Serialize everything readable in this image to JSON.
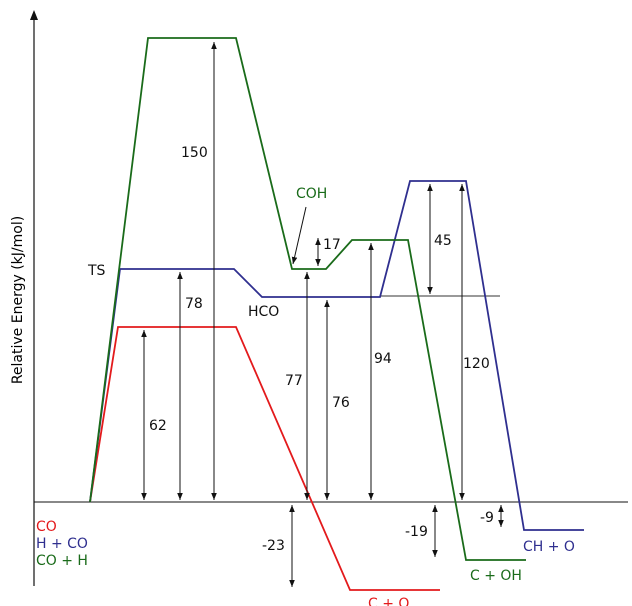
{
  "axis": {
    "ylabel": "Relative Energy (kJ/mol)"
  },
  "colors": {
    "red": "#e31a1c",
    "blue": "#2f2f8f",
    "green": "#1a6b1a",
    "black": "#111111",
    "ref": "#333333"
  },
  "paths": {
    "red": {
      "label": "CO",
      "end_label": "C + O"
    },
    "blue": {
      "label": "H + CO",
      "ts_label": "TS",
      "int_label": "HCO",
      "end_label": "CH + O"
    },
    "green": {
      "label": "CO + H",
      "int_label": "COH",
      "end_label": "C + OH"
    }
  },
  "energy_labels": [
    {
      "text": "150",
      "color": "green"
    },
    {
      "text": "78",
      "color": "black"
    },
    {
      "text": "62",
      "color": "red"
    },
    {
      "text": "17",
      "color": "black"
    },
    {
      "text": "45",
      "color": "black"
    },
    {
      "text": "77",
      "color": "black"
    },
    {
      "text": "76",
      "color": "black"
    },
    {
      "text": "94",
      "color": "black"
    },
    {
      "text": "120",
      "color": "blue"
    },
    {
      "text": "-23",
      "color": "black"
    },
    {
      "text": "-19",
      "color": "black"
    },
    {
      "text": "-9",
      "color": "black"
    }
  ]
}
